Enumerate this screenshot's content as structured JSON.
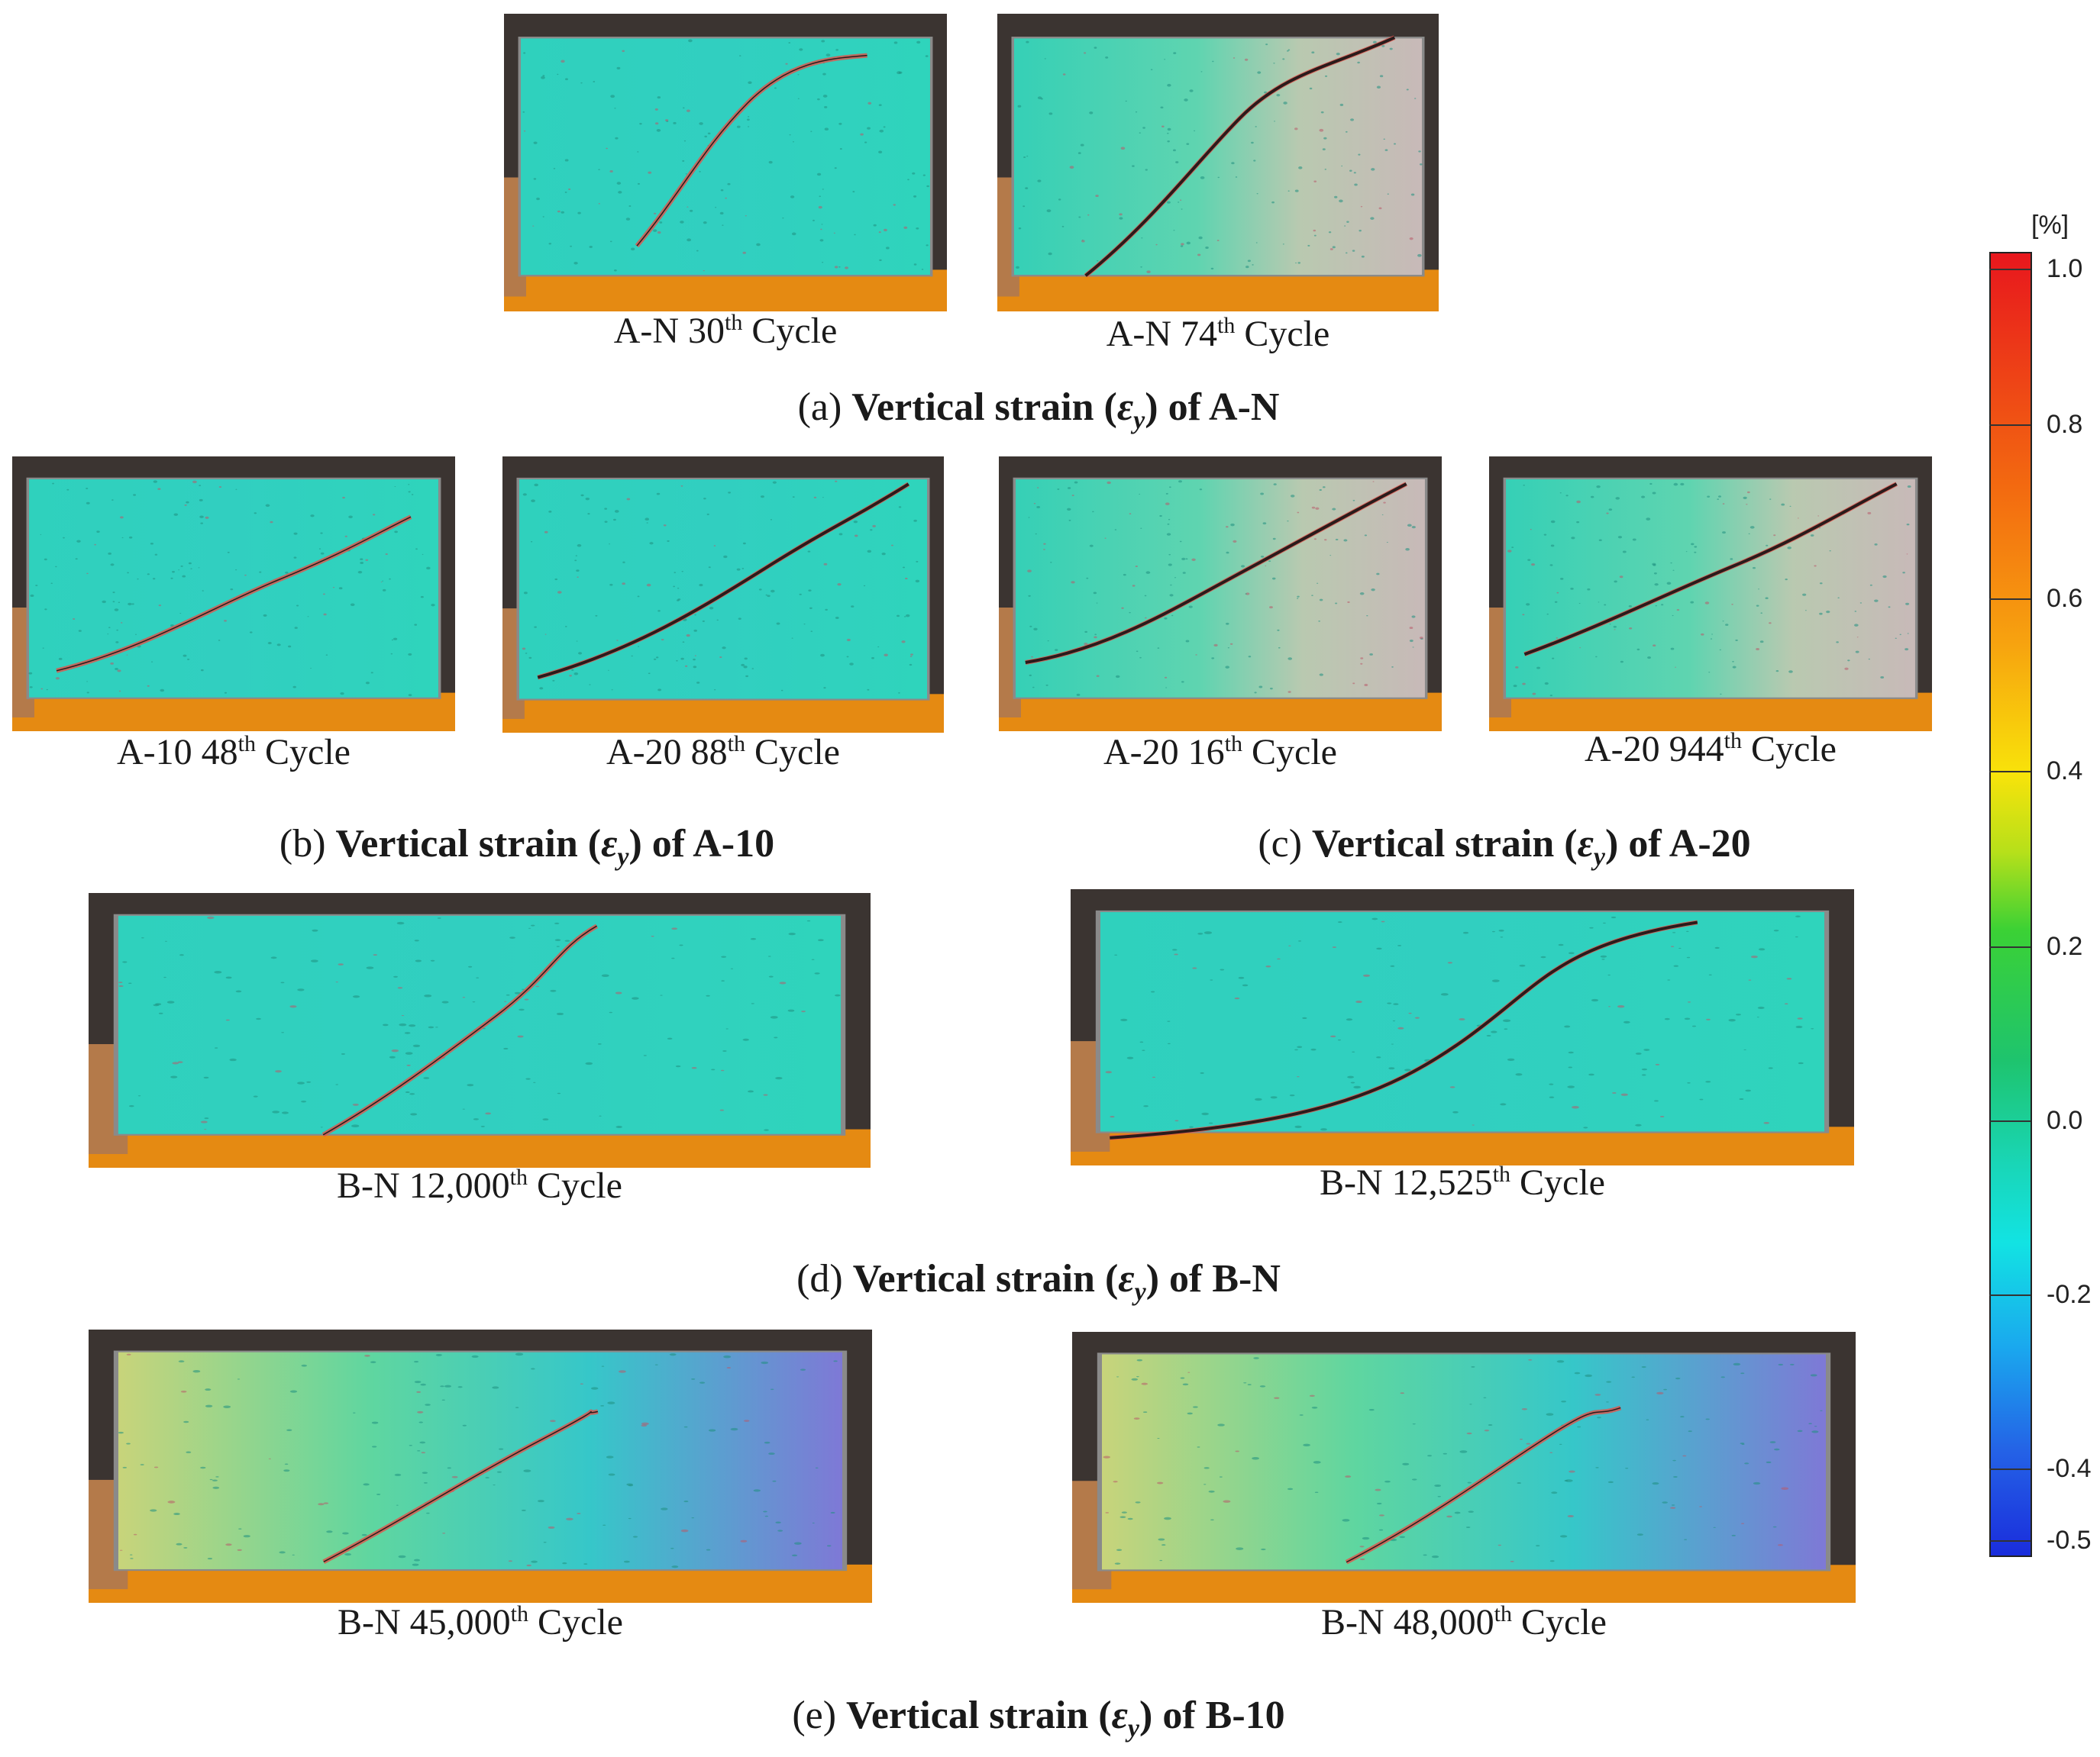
{
  "panels": [
    {
      "label_prefix": "A-N 30",
      "sup": "th",
      "label_suffix": " Cycle",
      "tint": "cyan"
    },
    {
      "label_prefix": "A-N 74",
      "sup": "th",
      "label_suffix": " Cycle",
      "tint": "mixed"
    },
    {
      "label_prefix": "A-10 48",
      "sup": "th",
      "label_suffix": " Cycle",
      "tint": "cyan"
    },
    {
      "label_prefix": "A-20 88",
      "sup": "th",
      "label_suffix": " Cycle",
      "tint": "cyan"
    },
    {
      "label_prefix": "A-20 16",
      "sup": "th",
      "label_suffix": " Cycle",
      "tint": "mixed"
    },
    {
      "label_prefix": "A-20 944",
      "sup": "th",
      "label_suffix": " Cycle",
      "tint": "mixed"
    },
    {
      "label_prefix": "B-N 12,000",
      "sup": "th",
      "label_suffix": " Cycle",
      "tint": "cyan"
    },
    {
      "label_prefix": "B-N 12,525",
      "sup": "th",
      "label_suffix": " Cycle",
      "tint": "cyan"
    },
    {
      "label_prefix": "B-N 45,000",
      "sup": "th",
      "label_suffix": " Cycle",
      "tint": "gradient"
    },
    {
      "label_prefix": "B-N 48,000",
      "sup": "th",
      "label_suffix": " Cycle",
      "tint": "gradient"
    }
  ],
  "subfigures": [
    {
      "letter": "(a)",
      "text": "Vertical strain (",
      "symbol": "ε",
      "subscript": "y",
      "tail": ") of A-N"
    },
    {
      "letter": "(b)",
      "text": "Vertical strain (",
      "symbol": "ε",
      "subscript": "y",
      "tail": ") of A-10"
    },
    {
      "letter": "(c)",
      "text": "Vertical strain (",
      "symbol": "ε",
      "subscript": "y",
      "tail": ") of A-20"
    },
    {
      "letter": "(d)",
      "text": "Vertical strain (",
      "symbol": "ε",
      "subscript": "y",
      "tail": ") of B-N"
    },
    {
      "letter": "(e)",
      "text": "Vertical strain (",
      "symbol": "ε",
      "subscript": "y",
      "tail": ") of B-10"
    }
  ],
  "colorbar": {
    "unit": "[%]",
    "ticks": [
      "1.0",
      "0.8",
      "0.6",
      "0.4",
      "0.2",
      "0.0",
      "-0.2",
      "-0.4",
      "-0.5"
    ]
  },
  "colors": {
    "cyan_field": "#2fd3bf",
    "crack": "#e2534a",
    "fixture_orange": "#e58a12",
    "frame_grey": "#8a8a8a"
  }
}
